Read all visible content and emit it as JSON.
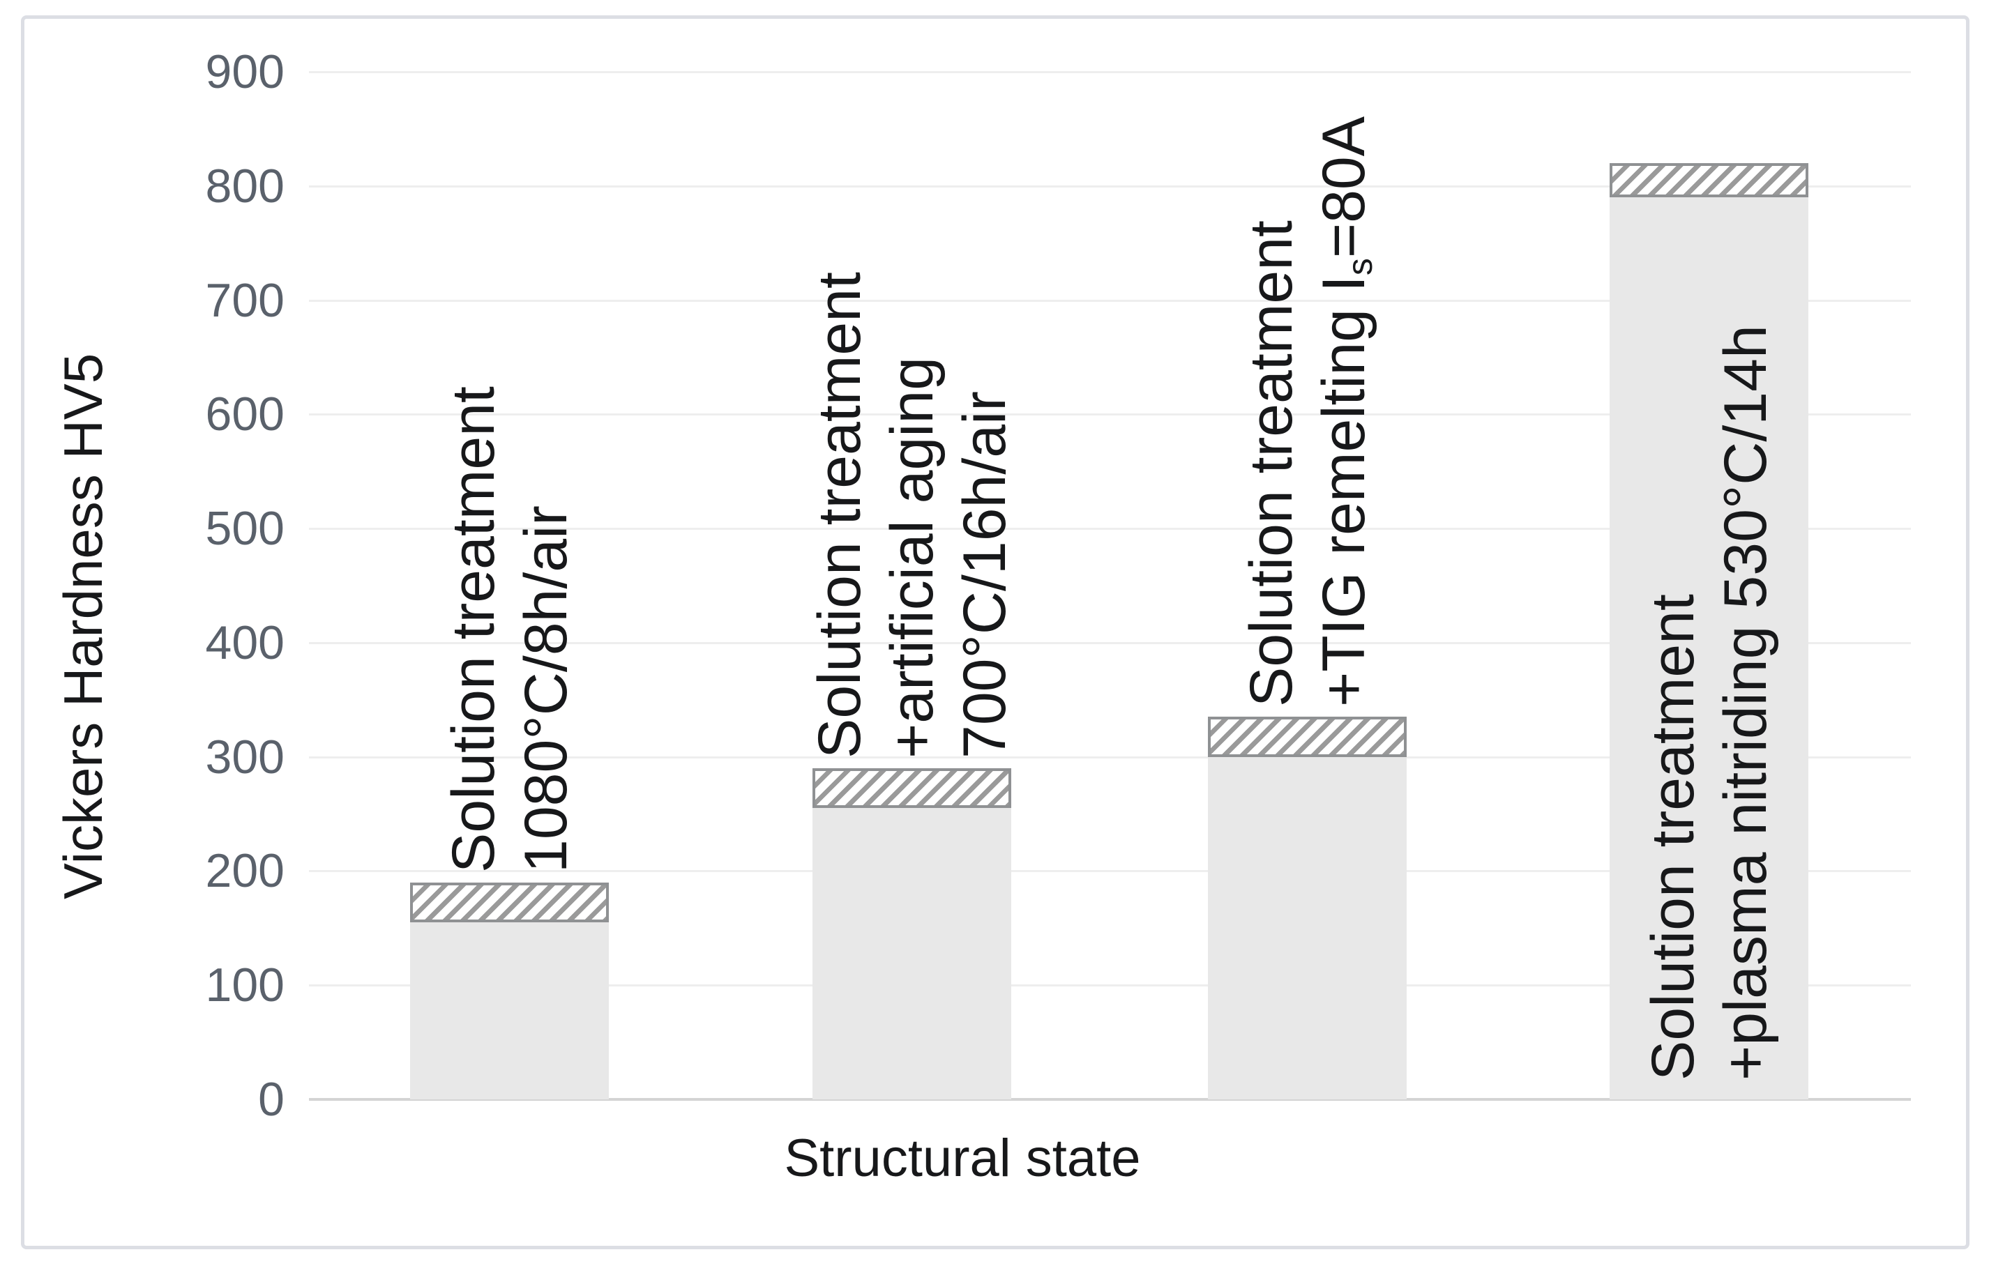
{
  "chart_data": {
    "type": "bar",
    "title": "",
    "xlabel": "Structural state",
    "ylabel": "Vickers Hardness HV5",
    "ylim": [
      0,
      900
    ],
    "y_ticks": [
      0,
      100,
      200,
      300,
      400,
      500,
      600,
      700,
      800,
      900
    ],
    "grid": true,
    "legend": "none",
    "categories": [
      {
        "name": "solution-treatment",
        "lines": [
          [
            {
              "text": "Solution treatment"
            }
          ],
          [
            {
              "text": "1080°C/8h/air"
            }
          ]
        ]
      },
      {
        "name": "solution-treatment-artificial-aging",
        "lines": [
          [
            {
              "text": "Solution treatment"
            }
          ],
          [
            {
              "text": "+artificial aging"
            }
          ],
          [
            {
              "text": "700°C/16h/air"
            }
          ]
        ]
      },
      {
        "name": "solution-treatment-tig-remelting",
        "lines": [
          [
            {
              "text": "Solution treatment"
            }
          ],
          [
            {
              "text": "+TIG remelting I"
            },
            {
              "text": "s",
              "sub": true
            },
            {
              "text": "=80A"
            }
          ]
        ]
      },
      {
        "name": "solution-treatment-plasma-nitriding",
        "lines": [
          [
            {
              "text": "Solution treatment"
            }
          ],
          [
            {
              "text": "+plasma nitriding 530°C/14h"
            }
          ]
        ]
      }
    ],
    "series": [
      {
        "name": "solid-mean-hardness",
        "values": [
          155,
          255,
          300,
          790
        ]
      },
      {
        "name": "hatched-range-top",
        "values": [
          190,
          290,
          335,
          820
        ]
      }
    ],
    "colors": {
      "bar_fill": "#e8e8e8",
      "hatch_stripe": "#9a9a9a",
      "hatch_border": "#8f9193",
      "gridline": "#eeeeee",
      "axis_line": "#d4d4d4",
      "tick_text": "#5a616b",
      "label_text": "#17181a"
    }
  }
}
